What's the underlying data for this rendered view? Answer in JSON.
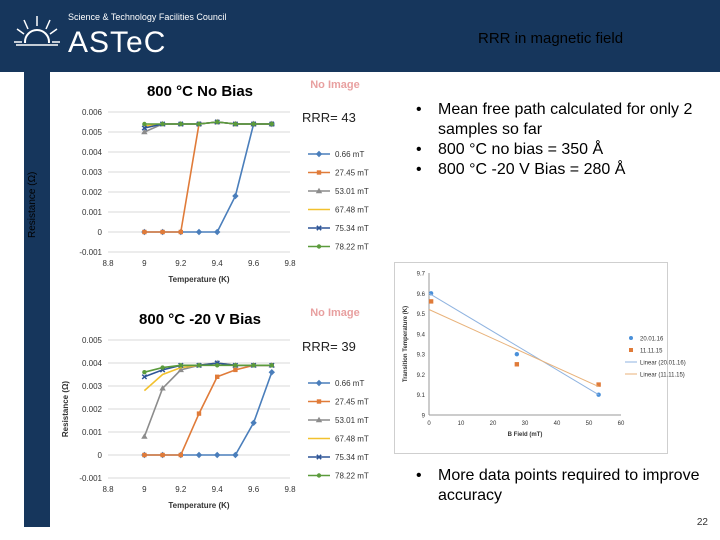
{
  "header": {
    "org_small": "Science & Technology Facilities Council",
    "org_name": "ASTeC",
    "slide_title": "RRR in magnetic field"
  },
  "side_label": "Resistance (Ω)",
  "rrr_top": "RRR= 43",
  "rrr_bottom": "RRR= 39",
  "bullets_top": [
    "Mean free path calculated for only 2 samples so far",
    "800 °C no bias = 350 Å",
    "800 °C -20 V Bias = 280 Å"
  ],
  "bullets_bottom": [
    "More data points required to improve accuracy"
  ],
  "page_number": "22",
  "chart_data": [
    {
      "type": "line",
      "title": "800 °C No Bias",
      "watermark": "No Image",
      "xlabel": "Temperature (K)",
      "ylabel": "",
      "xlim": [
        8.8,
        9.8
      ],
      "ylim": [
        -0.001,
        0.006
      ],
      "xticks": [
        "8.8",
        "9",
        "9.2",
        "9.4",
        "9.6",
        "9.8"
      ],
      "yticks": [
        "-0.001",
        "0",
        "0.001",
        "0.002",
        "0.003",
        "0.004",
        "0.005",
        "0.006"
      ],
      "legend_position": "right",
      "series": [
        {
          "name": "0.66 mT",
          "color": "#4a7ebb",
          "marker": "diamond",
          "points": [
            [
              9,
              0
            ],
            [
              9.1,
              0
            ],
            [
              9.2,
              0
            ],
            [
              9.3,
              0
            ],
            [
              9.4,
              0
            ],
            [
              9.5,
              0.0018
            ],
            [
              9.6,
              0.0054
            ],
            [
              9.7,
              0.0054
            ]
          ]
        },
        {
          "name": "27.45 mT",
          "color": "#e07b39",
          "marker": "square",
          "points": [
            [
              9,
              0
            ],
            [
              9.1,
              0
            ],
            [
              9.2,
              0
            ],
            [
              9.3,
              0.0054
            ],
            [
              9.4,
              0.0055
            ],
            [
              9.5,
              0.0054
            ],
            [
              9.6,
              0.0054
            ],
            [
              9.7,
              0.0054
            ]
          ]
        },
        {
          "name": "53.01 mT",
          "color": "#8c8c8c",
          "marker": "triangle",
          "points": [
            [
              9,
              0.005
            ],
            [
              9.1,
              0.0054
            ],
            [
              9.2,
              0.0054
            ],
            [
              9.3,
              0.0054
            ],
            [
              9.4,
              0.0055
            ],
            [
              9.5,
              0.0054
            ],
            [
              9.6,
              0.0054
            ],
            [
              9.7,
              0.0054
            ]
          ]
        },
        {
          "name": "67.48 mT",
          "color": "#f2c12e",
          "marker": "none",
          "points": [
            [
              9,
              0.0053
            ],
            [
              9.1,
              0.0054
            ],
            [
              9.2,
              0.0054
            ],
            [
              9.3,
              0.0054
            ],
            [
              9.4,
              0.0055
            ],
            [
              9.5,
              0.0054
            ],
            [
              9.6,
              0.0054
            ],
            [
              9.7,
              0.0054
            ]
          ]
        },
        {
          "name": "75.34 mT",
          "color": "#2e5597",
          "marker": "cross",
          "points": [
            [
              9,
              0.0052
            ],
            [
              9.1,
              0.0054
            ],
            [
              9.2,
              0.0054
            ],
            [
              9.3,
              0.0054
            ],
            [
              9.4,
              0.0055
            ],
            [
              9.5,
              0.0054
            ],
            [
              9.6,
              0.0054
            ],
            [
              9.7,
              0.0054
            ]
          ]
        },
        {
          "name": "78.22 mT",
          "color": "#5b9b3c",
          "marker": "circle",
          "points": [
            [
              9,
              0.0054
            ],
            [
              9.1,
              0.0054
            ],
            [
              9.2,
              0.0054
            ],
            [
              9.3,
              0.0054
            ],
            [
              9.4,
              0.0055
            ],
            [
              9.5,
              0.0054
            ],
            [
              9.6,
              0.0054
            ],
            [
              9.7,
              0.0054
            ]
          ]
        }
      ]
    },
    {
      "type": "line",
      "title": "800 °C -20 V Bias",
      "watermark": "No Image",
      "xlabel": "Temperature (K)",
      "ylabel": "Resistance (Ω)",
      "xlim": [
        8.8,
        9.8
      ],
      "ylim": [
        -0.001,
        0.005
      ],
      "xticks": [
        "8.8",
        "9",
        "9.2",
        "9.4",
        "9.6",
        "9.8"
      ],
      "yticks": [
        "-0.001",
        "0",
        "0.001",
        "0.002",
        "0.003",
        "0.004",
        "0.005"
      ],
      "legend_position": "right",
      "series": [
        {
          "name": "0.66 mT",
          "color": "#4a7ebb",
          "marker": "diamond",
          "points": [
            [
              9,
              0
            ],
            [
              9.1,
              0
            ],
            [
              9.2,
              0
            ],
            [
              9.3,
              0
            ],
            [
              9.4,
              0
            ],
            [
              9.5,
              0
            ],
            [
              9.6,
              0.0014
            ],
            [
              9.7,
              0.0036
            ]
          ]
        },
        {
          "name": "27.45 mT",
          "color": "#e07b39",
          "marker": "square",
          "points": [
            [
              9,
              0
            ],
            [
              9.1,
              0
            ],
            [
              9.2,
              0
            ],
            [
              9.3,
              0.0018
            ],
            [
              9.4,
              0.0034
            ],
            [
              9.5,
              0.0037
            ],
            [
              9.6,
              0.0039
            ],
            [
              9.7,
              0.0039
            ]
          ]
        },
        {
          "name": "53.01 mT",
          "color": "#8c8c8c",
          "marker": "triangle",
          "points": [
            [
              9,
              0.0008
            ],
            [
              9.1,
              0.0029
            ],
            [
              9.2,
              0.0037
            ],
            [
              9.3,
              0.0039
            ],
            [
              9.4,
              0.004
            ],
            [
              9.5,
              0.0039
            ],
            [
              9.6,
              0.0039
            ],
            [
              9.7,
              0.0039
            ]
          ]
        },
        {
          "name": "67.48 mT",
          "color": "#f2c12e",
          "marker": "none",
          "points": [
            [
              9,
              0.0028
            ],
            [
              9.1,
              0.0035
            ],
            [
              9.2,
              0.0038
            ],
            [
              9.3,
              0.0039
            ],
            [
              9.4,
              0.004
            ],
            [
              9.5,
              0.0039
            ],
            [
              9.6,
              0.0039
            ],
            [
              9.7,
              0.0039
            ]
          ]
        },
        {
          "name": "75.34 mT",
          "color": "#2e5597",
          "marker": "cross",
          "points": [
            [
              9,
              0.0034
            ],
            [
              9.1,
              0.0037
            ],
            [
              9.2,
              0.0039
            ],
            [
              9.3,
              0.0039
            ],
            [
              9.4,
              0.004
            ],
            [
              9.5,
              0.0039
            ],
            [
              9.6,
              0.0039
            ],
            [
              9.7,
              0.0039
            ]
          ]
        },
        {
          "name": "78.22 mT",
          "color": "#5b9b3c",
          "marker": "circle",
          "points": [
            [
              9,
              0.0036
            ],
            [
              9.1,
              0.0038
            ],
            [
              9.2,
              0.0039
            ],
            [
              9.3,
              0.0039
            ],
            [
              9.4,
              0.0039
            ],
            [
              9.5,
              0.0039
            ],
            [
              9.6,
              0.0039
            ],
            [
              9.7,
              0.0039
            ]
          ]
        }
      ]
    },
    {
      "type": "scatter",
      "title": "",
      "xlabel": "B Field (mT)",
      "ylabel": "Transition Temperature (K)",
      "xlim": [
        0,
        60
      ],
      "ylim": [
        9,
        9.7
      ],
      "xticks": [
        "0",
        "10",
        "20",
        "30",
        "40",
        "50",
        "60"
      ],
      "yticks": [
        "9",
        "9.1",
        "9.2",
        "9.3",
        "9.4",
        "9.5",
        "9.6",
        "9.7"
      ],
      "legend_position": "right",
      "series": [
        {
          "name": "20.01.16",
          "color": "#4a90d9",
          "marker": "circle",
          "points": [
            [
              0.66,
              9.6
            ],
            [
              27.45,
              9.3
            ],
            [
              53.01,
              9.1
            ]
          ]
        },
        {
          "name": "11.11.15",
          "color": "#e07b39",
          "marker": "square",
          "points": [
            [
              0.66,
              9.56
            ],
            [
              27.45,
              9.25
            ],
            [
              53.01,
              9.15
            ]
          ]
        },
        {
          "name": "Linear (20.01.16)",
          "color": "#8fb3e0",
          "marker": "line",
          "points": [
            [
              0,
              9.6
            ],
            [
              53,
              9.1
            ]
          ]
        },
        {
          "name": "Linear (11.11.15)",
          "color": "#e8b27a",
          "marker": "line",
          "points": [
            [
              0,
              9.52
            ],
            [
              53,
              9.14
            ]
          ]
        }
      ]
    }
  ]
}
